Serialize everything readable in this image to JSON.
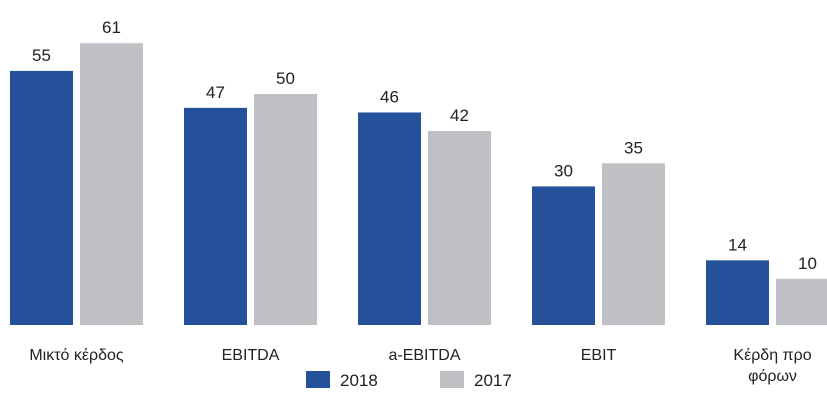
{
  "chart_data": {
    "type": "bar",
    "categories": [
      "Μικτό κέρδος",
      "EBITDA",
      "a-EBITDA",
      "EBIT",
      "Κέρδη προ φόρων"
    ],
    "series": [
      {
        "name": "2018",
        "color": "#24519a",
        "values": [
          55,
          47,
          46,
          30,
          14
        ]
      },
      {
        "name": "2017",
        "color": "#bfc0c3",
        "values": [
          61,
          50,
          42,
          35,
          10
        ]
      }
    ]
  }
}
